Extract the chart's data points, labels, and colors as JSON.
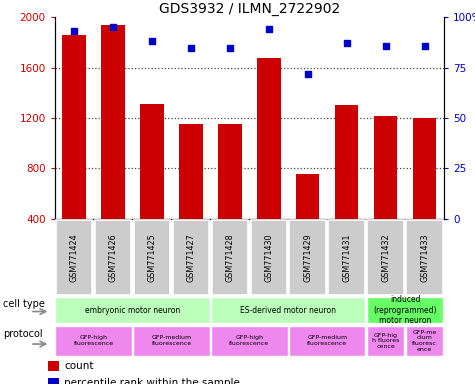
{
  "title": "GDS3932 / ILMN_2722902",
  "samples": [
    "GSM771424",
    "GSM771426",
    "GSM771425",
    "GSM771427",
    "GSM771428",
    "GSM771430",
    "GSM771429",
    "GSM771431",
    "GSM771432",
    "GSM771433"
  ],
  "counts": [
    1860,
    1940,
    1310,
    1155,
    1155,
    1680,
    760,
    1300,
    1220,
    1200
  ],
  "percentiles": [
    93,
    95,
    88,
    85,
    85,
    94,
    72,
    87,
    86,
    86
  ],
  "ylim_left": [
    400,
    2000
  ],
  "yticks_left": [
    400,
    800,
    1200,
    1600,
    2000
  ],
  "ylim_right": [
    0,
    100
  ],
  "yticks_right": [
    0,
    25,
    50,
    75,
    100
  ],
  "bar_color": "#cc0000",
  "dot_color": "#0000cc",
  "bar_width": 0.6,
  "cell_types": [
    {
      "label": "embryonic motor neuron",
      "start": 0,
      "end": 4,
      "color": "#bbffbb"
    },
    {
      "label": "ES-derived motor neuron",
      "start": 4,
      "end": 8,
      "color": "#bbffbb"
    },
    {
      "label": "induced\n(reprogrammed)\nmotor neuron",
      "start": 8,
      "end": 10,
      "color": "#66ff66"
    }
  ],
  "protocols": [
    {
      "label": "GFP-high\nfluorescence",
      "start": 0,
      "end": 2,
      "color": "#ee88ee"
    },
    {
      "label": "GFP-medium\nfluorescence",
      "start": 2,
      "end": 4,
      "color": "#ee88ee"
    },
    {
      "label": "GFP-high\nfluorescence",
      "start": 4,
      "end": 6,
      "color": "#ee88ee"
    },
    {
      "label": "GFP-medium\nfluorescence",
      "start": 6,
      "end": 8,
      "color": "#ee88ee"
    },
    {
      "label": "GFP-hig\nh fluores\ncence",
      "start": 8,
      "end": 9,
      "color": "#ee88ee"
    },
    {
      "label": "GFP-me\ndium\nfluoresc\nence",
      "start": 9,
      "end": 10,
      "color": "#ee88ee"
    }
  ],
  "dotted_grid_values": [
    800,
    1200,
    1600
  ],
  "background_color": "#ffffff",
  "tick_label_color_left": "#cc0000",
  "tick_label_color_right": "#0000cc",
  "sample_bg_color": "#cccccc",
  "grid_color": "#444444"
}
